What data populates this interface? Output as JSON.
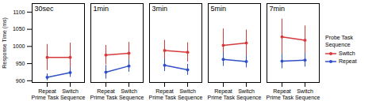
{
  "chart_data": [
    {
      "type": "line",
      "title": "30sec",
      "xlabel": "Prime Task Sequence",
      "ylabel": "Response Time (ms)",
      "categories": [
        "Repeat",
        "Switch"
      ],
      "marker": "circle",
      "series": [
        {
          "name": "Switch",
          "color": "#d63b3b",
          "values": [
            968,
            968
          ],
          "errors": [
            38,
            42
          ]
        },
        {
          "name": "Repeat",
          "color": "#3050c8",
          "values": [
            910,
            924
          ],
          "errors": [
            10,
            14
          ]
        }
      ],
      "ylim": [
        895,
        1125
      ],
      "yticks": [
        900,
        950,
        1000,
        1050,
        1100
      ]
    },
    {
      "type": "line",
      "title": "1min",
      "xlabel": "Prime Task Sequence",
      "categories": [
        "Repeat",
        "Switch"
      ],
      "marker": "circle",
      "tick_labels": "x",
      "series": [
        {
          "name": "Switch",
          "color": "#d63b3b",
          "values": [
            975,
            980
          ],
          "errors": [
            28,
            32
          ]
        },
        {
          "name": "Repeat",
          "color": "#3050c8",
          "values": [
            925,
            943
          ],
          "errors": [
            20,
            18
          ]
        }
      ],
      "ylim": [
        895,
        1125
      ],
      "yticks": [
        900,
        950,
        1000,
        1050,
        1100
      ]
    },
    {
      "type": "line",
      "title": "3min",
      "xlabel": "Prime Task Sequence",
      "categories": [
        "Repeat",
        "Switch"
      ],
      "marker": "circle",
      "tick_labels": "x",
      "series": [
        {
          "name": "Switch",
          "color": "#d63b3b",
          "values": [
            988,
            983
          ],
          "errors": [
            30,
            28
          ]
        },
        {
          "name": "Repeat",
          "color": "#3050c8",
          "values": [
            945,
            932
          ],
          "errors": [
            18,
            16
          ]
        }
      ],
      "ylim": [
        895,
        1125
      ],
      "yticks": [
        900,
        950,
        1000,
        1050,
        1100
      ]
    },
    {
      "type": "line",
      "title": "5min",
      "xlabel": "Prime Task Sequence",
      "categories": [
        "Repeat",
        "Switch"
      ],
      "marker": "circle",
      "tick_labels": "x",
      "series": [
        {
          "name": "Switch",
          "color": "#d63b3b",
          "values": [
            1003,
            1010
          ],
          "errors": [
            48,
            38
          ]
        },
        {
          "name": "Repeat",
          "color": "#3050c8",
          "values": [
            962,
            956
          ],
          "errors": [
            20,
            18
          ]
        }
      ],
      "ylim": [
        895,
        1125
      ],
      "yticks": [
        900,
        950,
        1000,
        1050,
        1100
      ]
    },
    {
      "type": "line",
      "title": "7min",
      "xlabel": "Prime Task Sequence",
      "categories": [
        "Repeat",
        "Switch"
      ],
      "marker": "circle",
      "tick_labels": "x",
      "legend": "right",
      "legend_title": "Probe Task\nSequence",
      "series": [
        {
          "name": "Switch",
          "color": "#d63b3b",
          "values": [
            1028,
            1018
          ],
          "errors": [
            52,
            42
          ]
        },
        {
          "name": "Repeat",
          "color": "#3050c8",
          "values": [
            957,
            960
          ],
          "errors": [
            22,
            20
          ]
        }
      ],
      "ylim": [
        895,
        1125
      ],
      "yticks": [
        900,
        950,
        1000,
        1050,
        1100
      ]
    }
  ]
}
